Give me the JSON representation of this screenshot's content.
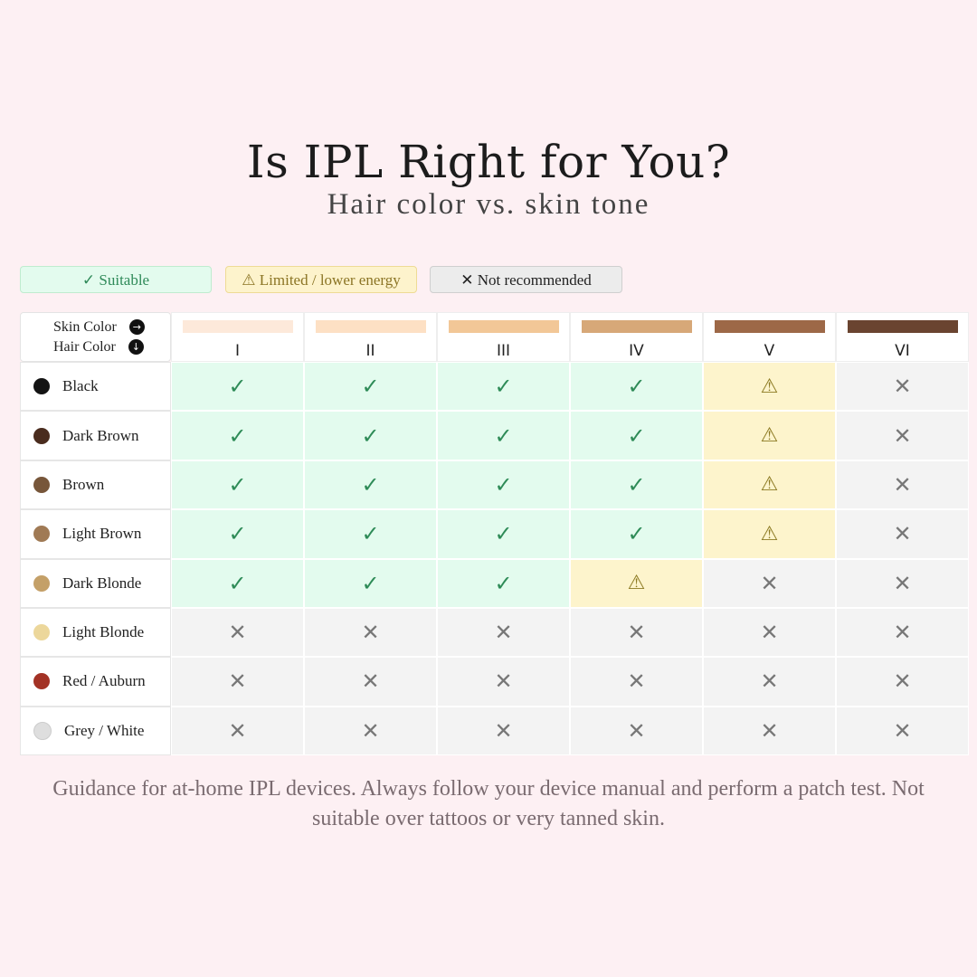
{
  "title": "Is IPL Right for You?",
  "subtitle": "Hair color vs. skin tone",
  "legend": {
    "suitable": "✓ Suitable",
    "limited": "⚠ Limited / lower energy",
    "not_recommended": "✕ Not recommended"
  },
  "corner": {
    "skin_label": "Skin Color",
    "hair_label": "Hair Color",
    "skin_arrow": "→",
    "hair_arrow": "↓"
  },
  "skin_types": [
    {
      "label": "I",
      "color": "#fde9da"
    },
    {
      "label": "II",
      "color": "#fde0c4"
    },
    {
      "label": "III",
      "color": "#f2c797"
    },
    {
      "label": "IV",
      "color": "#d7a878"
    },
    {
      "label": "V",
      "color": "#9d6847"
    },
    {
      "label": "VI",
      "color": "#6a4430"
    }
  ],
  "hair_colors": [
    {
      "label": "Black",
      "color": "#141414"
    },
    {
      "label": "Dark Brown",
      "color": "#4a2c1e"
    },
    {
      "label": "Brown",
      "color": "#77563a"
    },
    {
      "label": "Light Brown",
      "color": "#a07a55"
    },
    {
      "label": "Dark Blonde",
      "color": "#c4a068"
    },
    {
      "label": "Light Blonde",
      "color": "#ecd79b"
    },
    {
      "label": "Red / Auburn",
      "color": "#a33225"
    },
    {
      "label": "Grey / White",
      "color": "#dedede"
    }
  ],
  "symbols": {
    "suitable": "✓",
    "limited": "⚠",
    "not_recommended": "✕"
  },
  "matrix": [
    [
      "suitable",
      "suitable",
      "suitable",
      "suitable",
      "limited",
      "not_recommended"
    ],
    [
      "suitable",
      "suitable",
      "suitable",
      "suitable",
      "limited",
      "not_recommended"
    ],
    [
      "suitable",
      "suitable",
      "suitable",
      "suitable",
      "limited",
      "not_recommended"
    ],
    [
      "suitable",
      "suitable",
      "suitable",
      "suitable",
      "limited",
      "not_recommended"
    ],
    [
      "suitable",
      "suitable",
      "suitable",
      "limited",
      "not_recommended",
      "not_recommended"
    ],
    [
      "not_recommended",
      "not_recommended",
      "not_recommended",
      "not_recommended",
      "not_recommended",
      "not_recommended"
    ],
    [
      "not_recommended",
      "not_recommended",
      "not_recommended",
      "not_recommended",
      "not_recommended",
      "not_recommended"
    ],
    [
      "not_recommended",
      "not_recommended",
      "not_recommended",
      "not_recommended",
      "not_recommended",
      "not_recommended"
    ]
  ],
  "footer": "Guidance for at-home IPL devices. Always follow your device manual and perform a patch test. Not suitable over tattoos or very tanned skin."
}
